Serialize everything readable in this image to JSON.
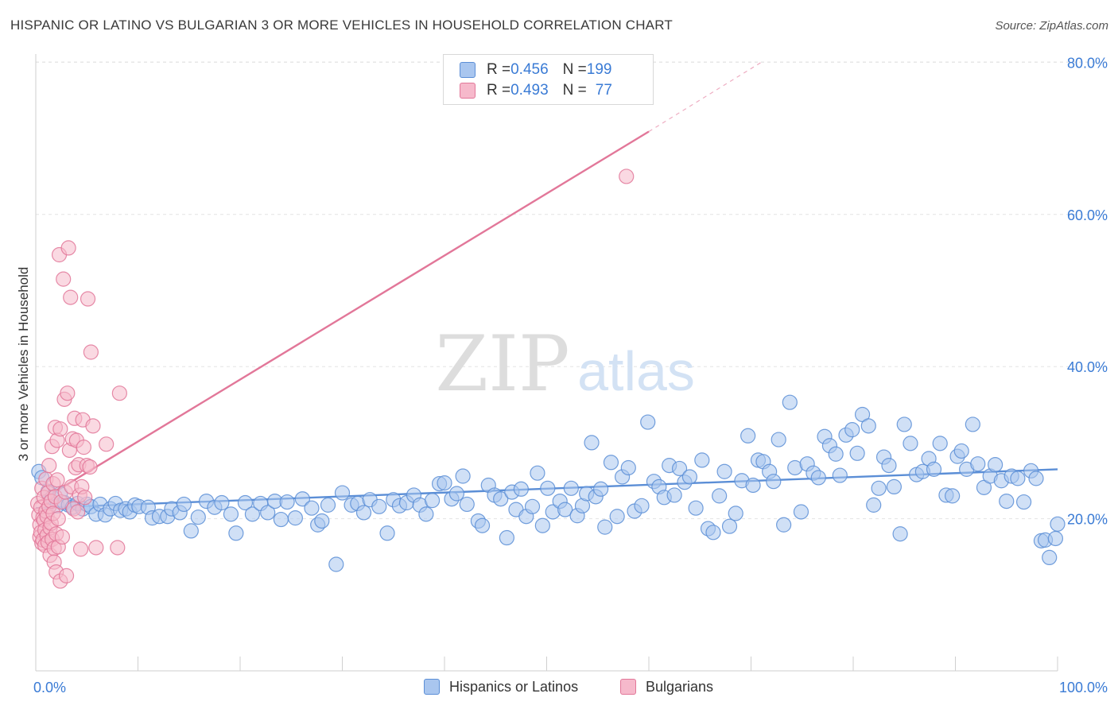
{
  "title": "HISPANIC OR LATINO VS BULGARIAN 3 OR MORE VEHICLES IN HOUSEHOLD CORRELATION CHART",
  "source": "Source: ZipAtlas.com",
  "watermark": {
    "zip": "ZIP",
    "atlas": "atlas"
  },
  "legend": {
    "rows": [
      {
        "r_label": "R = ",
        "r_value": "0.456",
        "n_label": "N = ",
        "n_value": "199",
        "color": "#a9c6ef",
        "stroke": "#5b8ed6"
      },
      {
        "r_label": "R = ",
        "r_value": "0.493",
        "n_label": "N = ",
        "n_value": "77",
        "color": "#f6b9cb",
        "stroke": "#e27799"
      }
    ]
  },
  "bottom_legend": [
    {
      "label": "Hispanics or Latinos",
      "color": "#a9c6ef",
      "stroke": "#5b8ed6"
    },
    {
      "label": "Bulgarians",
      "color": "#f6b9cb",
      "stroke": "#e27799"
    }
  ],
  "chart_data": {
    "type": "scatter",
    "title": "HISPANIC OR LATINO VS BULGARIAN 3 OR MORE VEHICLES IN HOUSEHOLD CORRELATION CHART",
    "xlabel": "",
    "ylabel": "3 or more Vehicles in Household",
    "xlim": [
      0,
      100
    ],
    "ylim": [
      0,
      82
    ],
    "x_tick_labels": [
      "0.0%",
      "100.0%"
    ],
    "y_ticks": [
      20,
      40,
      60,
      80
    ],
    "y_tick_labels": [
      "20.0%",
      "40.0%",
      "60.0%",
      "80.0%"
    ],
    "grid": true,
    "legend_position": "top-center",
    "series": [
      {
        "name": "Hispanics or Latinos",
        "color": "#5b8ed6",
        "fill": "#a9c6ef",
        "trend": {
          "x": [
            0,
            100
          ],
          "y": [
            21.4,
            26.5
          ]
        },
        "points": [
          [
            0.3,
            26.2
          ],
          [
            0.6,
            25.4
          ],
          [
            1.2,
            23.6
          ],
          [
            1.6,
            22.8
          ],
          [
            2.1,
            21.7
          ],
          [
            2.4,
            23.3
          ],
          [
            2.8,
            22.1
          ],
          [
            3.2,
            21.8
          ],
          [
            3.6,
            21.5
          ],
          [
            4.1,
            22.0
          ],
          [
            4.6,
            21.3
          ],
          [
            5.0,
            21.9
          ],
          [
            5.4,
            21.6
          ],
          [
            5.9,
            20.6
          ],
          [
            6.3,
            21.9
          ],
          [
            6.8,
            20.5
          ],
          [
            7.3,
            21.3
          ],
          [
            7.8,
            22.0
          ],
          [
            8.3,
            21.1
          ],
          [
            8.8,
            21.3
          ],
          [
            9.2,
            20.9
          ],
          [
            9.7,
            21.8
          ],
          [
            10.1,
            21.6
          ],
          [
            11.0,
            21.5
          ],
          [
            11.4,
            20.1
          ],
          [
            12.1,
            20.3
          ],
          [
            12.9,
            20.3
          ],
          [
            13.3,
            21.3
          ],
          [
            14.1,
            20.8
          ],
          [
            14.5,
            21.9
          ],
          [
            15.2,
            18.4
          ],
          [
            15.9,
            20.2
          ],
          [
            16.7,
            22.3
          ],
          [
            17.5,
            21.5
          ],
          [
            18.2,
            22.1
          ],
          [
            19.1,
            20.6
          ],
          [
            19.6,
            18.1
          ],
          [
            20.5,
            22.1
          ],
          [
            21.2,
            20.6
          ],
          [
            22.0,
            22.0
          ],
          [
            22.7,
            20.8
          ],
          [
            23.4,
            22.3
          ],
          [
            24.0,
            19.9
          ],
          [
            24.6,
            22.2
          ],
          [
            25.4,
            20.1
          ],
          [
            26.1,
            22.6
          ],
          [
            27.0,
            21.4
          ],
          [
            27.6,
            19.2
          ],
          [
            28.0,
            19.7
          ],
          [
            28.6,
            21.8
          ],
          [
            29.4,
            14.0
          ],
          [
            30.0,
            23.4
          ],
          [
            30.9,
            21.8
          ],
          [
            31.5,
            22.0
          ],
          [
            32.1,
            20.8
          ],
          [
            32.7,
            22.5
          ],
          [
            33.6,
            21.6
          ],
          [
            34.4,
            18.1
          ],
          [
            35.0,
            22.5
          ],
          [
            35.6,
            21.7
          ],
          [
            36.3,
            22.1
          ],
          [
            37.0,
            23.1
          ],
          [
            37.6,
            21.8
          ],
          [
            38.2,
            20.6
          ],
          [
            38.8,
            22.4
          ],
          [
            39.5,
            24.6
          ],
          [
            40.0,
            24.7
          ],
          [
            40.7,
            22.6
          ],
          [
            41.2,
            23.3
          ],
          [
            41.8,
            25.6
          ],
          [
            42.2,
            21.9
          ],
          [
            43.3,
            19.7
          ],
          [
            43.7,
            19.1
          ],
          [
            44.3,
            24.4
          ],
          [
            44.9,
            23.1
          ],
          [
            45.5,
            22.6
          ],
          [
            46.1,
            17.5
          ],
          [
            46.6,
            23.5
          ],
          [
            47.0,
            21.2
          ],
          [
            47.5,
            23.9
          ],
          [
            48.0,
            20.3
          ],
          [
            48.6,
            21.6
          ],
          [
            49.1,
            26.0
          ],
          [
            49.6,
            19.1
          ],
          [
            50.1,
            24.0
          ],
          [
            50.6,
            20.9
          ],
          [
            51.3,
            22.3
          ],
          [
            51.8,
            21.2
          ],
          [
            52.4,
            24.0
          ],
          [
            53.0,
            20.4
          ],
          [
            53.5,
            21.7
          ],
          [
            53.9,
            23.3
          ],
          [
            54.4,
            30.0
          ],
          [
            54.8,
            22.9
          ],
          [
            55.3,
            23.9
          ],
          [
            55.7,
            18.9
          ],
          [
            56.3,
            27.4
          ],
          [
            56.9,
            20.3
          ],
          [
            57.4,
            25.5
          ],
          [
            58.0,
            26.7
          ],
          [
            58.6,
            21.0
          ],
          [
            59.3,
            21.7
          ],
          [
            59.9,
            32.7
          ],
          [
            60.5,
            24.9
          ],
          [
            61.0,
            24.2
          ],
          [
            61.5,
            22.8
          ],
          [
            62.0,
            27.0
          ],
          [
            62.5,
            23.1
          ],
          [
            63.0,
            26.6
          ],
          [
            63.5,
            24.8
          ],
          [
            64.0,
            25.5
          ],
          [
            64.6,
            21.4
          ],
          [
            65.2,
            27.7
          ],
          [
            65.8,
            18.7
          ],
          [
            66.3,
            18.2
          ],
          [
            66.9,
            23.0
          ],
          [
            67.4,
            26.2
          ],
          [
            67.9,
            19.0
          ],
          [
            68.5,
            20.7
          ],
          [
            69.1,
            25.0
          ],
          [
            69.7,
            30.9
          ],
          [
            70.2,
            24.4
          ],
          [
            70.7,
            27.7
          ],
          [
            71.2,
            27.5
          ],
          [
            71.8,
            26.2
          ],
          [
            72.2,
            24.9
          ],
          [
            72.7,
            30.4
          ],
          [
            73.2,
            19.2
          ],
          [
            73.8,
            35.3
          ],
          [
            74.3,
            26.7
          ],
          [
            74.9,
            20.9
          ],
          [
            75.5,
            27.2
          ],
          [
            76.1,
            26.0
          ],
          [
            76.6,
            25.4
          ],
          [
            77.2,
            30.8
          ],
          [
            77.7,
            29.6
          ],
          [
            78.3,
            28.5
          ],
          [
            78.7,
            25.7
          ],
          [
            79.3,
            31.0
          ],
          [
            79.9,
            31.7
          ],
          [
            80.4,
            28.6
          ],
          [
            80.9,
            33.7
          ],
          [
            81.5,
            32.2
          ],
          [
            82.0,
            21.8
          ],
          [
            82.5,
            24.0
          ],
          [
            83.0,
            28.1
          ],
          [
            83.5,
            27.0
          ],
          [
            84.0,
            24.2
          ],
          [
            84.6,
            18.0
          ],
          [
            85.0,
            32.4
          ],
          [
            85.6,
            29.9
          ],
          [
            86.2,
            25.8
          ],
          [
            86.8,
            26.2
          ],
          [
            87.4,
            27.9
          ],
          [
            87.9,
            26.5
          ],
          [
            88.5,
            29.9
          ],
          [
            89.1,
            23.1
          ],
          [
            89.7,
            23.0
          ],
          [
            90.2,
            28.2
          ],
          [
            90.6,
            28.9
          ],
          [
            91.1,
            26.5
          ],
          [
            91.7,
            32.4
          ],
          [
            92.2,
            27.2
          ],
          [
            92.8,
            24.1
          ],
          [
            93.4,
            25.6
          ],
          [
            93.9,
            27.1
          ],
          [
            94.5,
            25.0
          ],
          [
            95.0,
            22.3
          ],
          [
            95.5,
            25.6
          ],
          [
            96.1,
            25.3
          ],
          [
            96.7,
            22.2
          ],
          [
            97.4,
            26.3
          ],
          [
            97.9,
            25.3
          ],
          [
            98.4,
            17.1
          ],
          [
            98.8,
            17.2
          ],
          [
            99.2,
            14.9
          ],
          [
            99.8,
            17.4
          ],
          [
            100.0,
            19.3
          ]
        ]
      },
      {
        "name": "Bulgarians",
        "color": "#e27799",
        "fill": "#f6b9cb",
        "trend": {
          "x": [
            0,
            60
          ],
          "y": [
            22.0,
            70.9
          ]
        },
        "trend_dashed": {
          "x": [
            60,
            71
          ],
          "y": [
            70.9,
            80.0
          ]
        },
        "points": [
          [
            0.2,
            22.0
          ],
          [
            0.3,
            20.5
          ],
          [
            0.4,
            19.2
          ],
          [
            0.4,
            17.6
          ],
          [
            0.5,
            21.5
          ],
          [
            0.5,
            18.2
          ],
          [
            0.6,
            16.8
          ],
          [
            0.6,
            24.0
          ],
          [
            0.7,
            20.1
          ],
          [
            0.7,
            17.2
          ],
          [
            0.8,
            22.8
          ],
          [
            0.8,
            19.8
          ],
          [
            0.9,
            18.5
          ],
          [
            0.9,
            16.5
          ],
          [
            1.0,
            25.2
          ],
          [
            1.0,
            21.0
          ],
          [
            1.1,
            20.3
          ],
          [
            1.1,
            17.8
          ],
          [
            1.2,
            23.4
          ],
          [
            1.2,
            16.9
          ],
          [
            1.3,
            27.0
          ],
          [
            1.3,
            21.6
          ],
          [
            1.4,
            18.8
          ],
          [
            1.4,
            15.2
          ],
          [
            1.5,
            22.3
          ],
          [
            1.5,
            19.4
          ],
          [
            1.6,
            17.3
          ],
          [
            1.6,
            29.5
          ],
          [
            1.7,
            24.6
          ],
          [
            1.7,
            20.7
          ],
          [
            1.8,
            16.1
          ],
          [
            1.8,
            14.3
          ],
          [
            1.9,
            32.0
          ],
          [
            1.9,
            22.9
          ],
          [
            2.0,
            18.0
          ],
          [
            2.0,
            13.0
          ],
          [
            2.1,
            30.3
          ],
          [
            2.1,
            25.1
          ],
          [
            2.2,
            20.0
          ],
          [
            2.2,
            16.3
          ],
          [
            2.3,
            54.7
          ],
          [
            2.4,
            31.8
          ],
          [
            2.4,
            11.8
          ],
          [
            2.5,
            22.2
          ],
          [
            2.6,
            17.6
          ],
          [
            2.7,
            51.5
          ],
          [
            2.8,
            35.7
          ],
          [
            2.9,
            23.5
          ],
          [
            3.0,
            12.5
          ],
          [
            3.1,
            36.5
          ],
          [
            3.2,
            55.6
          ],
          [
            3.3,
            29.0
          ],
          [
            3.4,
            49.1
          ],
          [
            3.5,
            24.2
          ],
          [
            3.6,
            30.5
          ],
          [
            3.7,
            21.3
          ],
          [
            3.8,
            33.2
          ],
          [
            3.9,
            26.7
          ],
          [
            4.0,
            30.3
          ],
          [
            4.1,
            20.9
          ],
          [
            4.2,
            27.1
          ],
          [
            4.3,
            23.1
          ],
          [
            4.4,
            16.0
          ],
          [
            4.5,
            24.2
          ],
          [
            4.6,
            33.0
          ],
          [
            4.7,
            29.4
          ],
          [
            4.8,
            22.8
          ],
          [
            5.0,
            27.0
          ],
          [
            5.1,
            48.9
          ],
          [
            5.3,
            26.8
          ],
          [
            5.4,
            41.9
          ],
          [
            5.6,
            32.2
          ],
          [
            5.9,
            16.2
          ],
          [
            6.9,
            29.8
          ],
          [
            8.0,
            16.2
          ],
          [
            8.2,
            36.5
          ],
          [
            57.8,
            65.0
          ]
        ]
      }
    ]
  }
}
